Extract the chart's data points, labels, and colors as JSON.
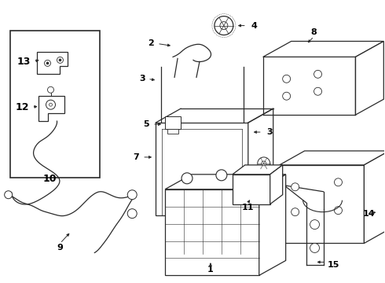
{
  "background_color": "#ffffff",
  "line_color": "#2a2a2a",
  "text_color": "#000000",
  "fig_width": 4.9,
  "fig_height": 3.6,
  "dpi": 100
}
